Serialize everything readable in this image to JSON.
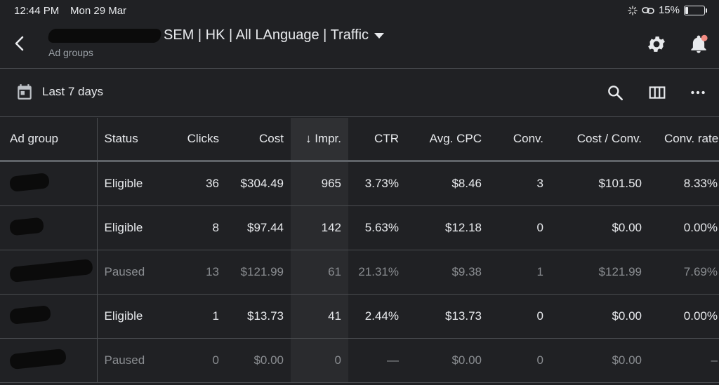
{
  "status_bar": {
    "time": "12:44 PM",
    "date": "Mon 29 Mar",
    "battery": "15%",
    "battery_level": 0.15
  },
  "header": {
    "title_visible": "SEM | HK | All LAnguage | Traffic",
    "subtitle": "Ad groups",
    "icons": [
      "back-arrow-icon",
      "dropdown-caret-icon",
      "settings-gear-icon",
      "notification-bell-icon"
    ]
  },
  "filter": {
    "date_range": "Last 7 days",
    "icons": [
      "calendar-icon",
      "search-icon",
      "columns-icon",
      "more-options-icon"
    ]
  },
  "table": {
    "columns": [
      "Ad group",
      "Status",
      "Clicks",
      "Cost",
      "Impr.",
      "CTR",
      "Avg. CPC",
      "Conv.",
      "Cost / Conv.",
      "Conv. rate"
    ],
    "sort_indicator": "↓",
    "rows": [
      {
        "status": "Eligible",
        "clicks": "36",
        "cost": "$304.49",
        "impr": "965",
        "ctr": "3.73%",
        "avg_cpc": "$8.46",
        "conv": "3",
        "cost_conv": "$101.50",
        "conv_rate": "8.33%"
      },
      {
        "status": "Eligible",
        "clicks": "8",
        "cost": "$97.44",
        "impr": "142",
        "ctr": "5.63%",
        "avg_cpc": "$12.18",
        "conv": "0",
        "cost_conv": "$0.00",
        "conv_rate": "0.00%"
      },
      {
        "status": "Paused",
        "clicks": "13",
        "cost": "$121.99",
        "impr": "61",
        "ctr": "21.31%",
        "avg_cpc": "$9.38",
        "conv": "1",
        "cost_conv": "$121.99",
        "conv_rate": "7.69%"
      },
      {
        "status": "Eligible",
        "clicks": "1",
        "cost": "$13.73",
        "impr": "41",
        "ctr": "2.44%",
        "avg_cpc": "$13.73",
        "conv": "0",
        "cost_conv": "$0.00",
        "conv_rate": "0.00%"
      },
      {
        "status": "Paused",
        "clicks": "0",
        "cost": "$0.00",
        "impr": "0",
        "ctr": "—",
        "avg_cpc": "$0.00",
        "conv": "0",
        "cost_conv": "$0.00",
        "conv_rate": "–"
      }
    ]
  },
  "colors": {
    "background": "#202124",
    "text": "#e8eaed",
    "muted": "#8a8d91",
    "notification_dot": "#f28b82"
  }
}
